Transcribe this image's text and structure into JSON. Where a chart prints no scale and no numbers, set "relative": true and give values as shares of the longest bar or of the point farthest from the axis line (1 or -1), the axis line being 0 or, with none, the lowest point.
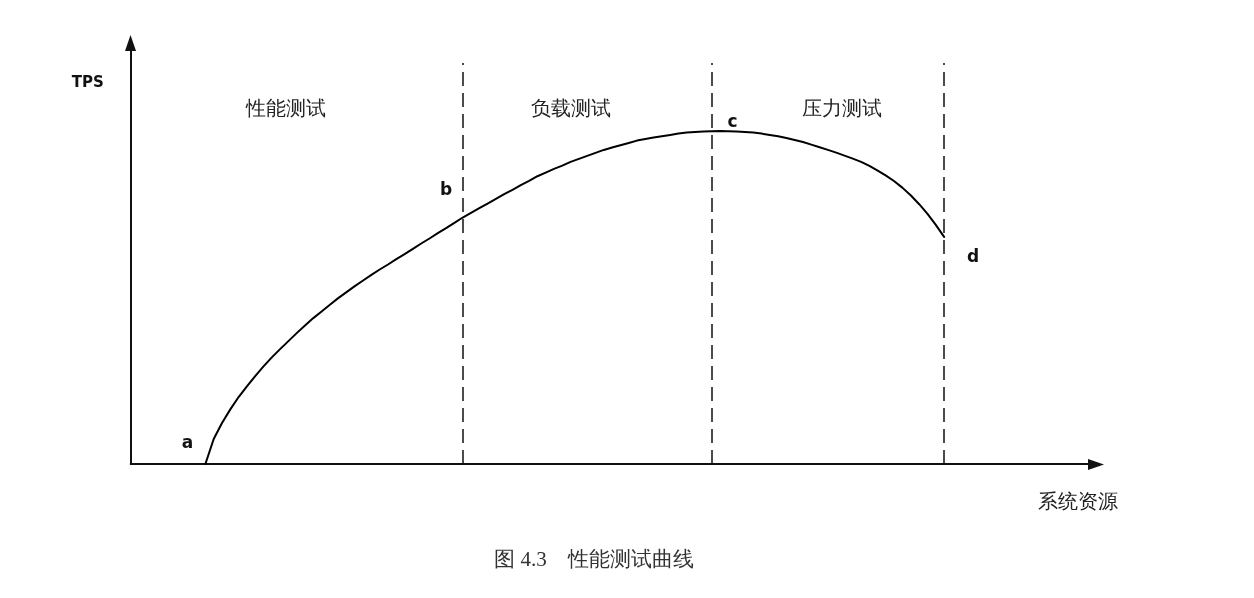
{
  "chart_data": {
    "type": "line",
    "relative": true,
    "title": "图 4.3　性能测试曲线",
    "xlabel": "系统资源",
    "ylabel": "TPS",
    "categories": [
      null,
      null,
      null,
      null,
      null,
      null,
      null,
      null,
      null,
      null,
      null,
      null,
      null,
      null,
      null,
      null,
      null,
      null,
      null,
      null,
      null,
      null,
      null,
      null,
      null,
      null,
      null,
      null,
      null,
      null,
      null,
      null,
      null,
      null,
      null,
      null,
      null,
      null,
      null,
      null,
      null,
      null,
      null,
      null,
      null,
      null,
      null,
      null,
      null,
      null,
      null,
      null,
      null,
      null,
      null,
      null,
      null,
      null,
      null,
      null,
      null,
      null,
      null,
      null,
      null,
      null,
      null,
      null,
      null,
      null,
      null,
      null,
      null,
      null,
      null,
      null,
      null,
      null,
      null,
      null,
      null,
      null,
      null,
      null,
      null,
      null,
      null,
      null,
      null,
      null,
      null,
      null,
      null,
      null,
      null,
      null,
      null,
      null,
      null,
      null,
      null,
      null,
      null,
      null,
      null,
      null,
      null,
      null,
      null,
      null,
      null,
      null,
      null,
      null,
      null,
      null,
      null
    ],
    "series": [
      {
        "color": "#000000",
        "values": [
          null,
          null,
          null,
          null,
          null,
          null,
          null,
          null,
          null,
          0,
          0.075,
          0.123,
          0.164,
          0.201,
          0.233,
          0.264,
          0.293,
          0.32,
          0.345,
          0.369,
          0.393,
          0.416,
          0.438,
          0.458,
          0.478,
          0.498,
          0.516,
          0.534,
          0.551,
          0.568,
          0.584,
          0.599,
          0.615,
          0.63,
          0.646,
          0.662,
          0.677,
          0.693,
          0.708,
          0.724,
          0.74,
          0.754,
          0.768,
          0.782,
          0.796,
          0.81,
          0.823,
          0.837,
          0.85,
          0.864,
          0.875,
          0.886,
          0.896,
          0.907,
          0.916,
          0.925,
          0.934,
          0.943,
          0.95,
          0.957,
          0.964,
          0.971,
          0.976,
          0.98,
          0.984,
          0.988,
          0.992,
          0.995,
          0.997,
          0.998,
          0.999,
          1,
          0.999,
          0.998,
          0.997,
          0.995,
          0.992,
          0.988,
          0.984,
          0.979,
          0.973,
          0.967,
          0.959,
          0.951,
          0.943,
          0.935,
          0.926,
          0.917,
          0.907,
          0.895,
          0.881,
          0.866,
          0.849,
          0.829,
          0.806,
          0.78,
          0.751,
          0.718,
          0.682,
          null,
          null,
          null,
          null,
          null,
          null,
          null,
          null,
          null,
          null,
          null,
          null,
          null,
          null,
          null,
          null,
          null,
          null
        ]
      }
    ],
    "annotations": [
      "性能测试",
      "负载测试",
      "压力测试",
      "a",
      "b",
      "c",
      "d"
    ],
    "grid": false,
    "marker": "none",
    "line_style": "solid"
  }
}
